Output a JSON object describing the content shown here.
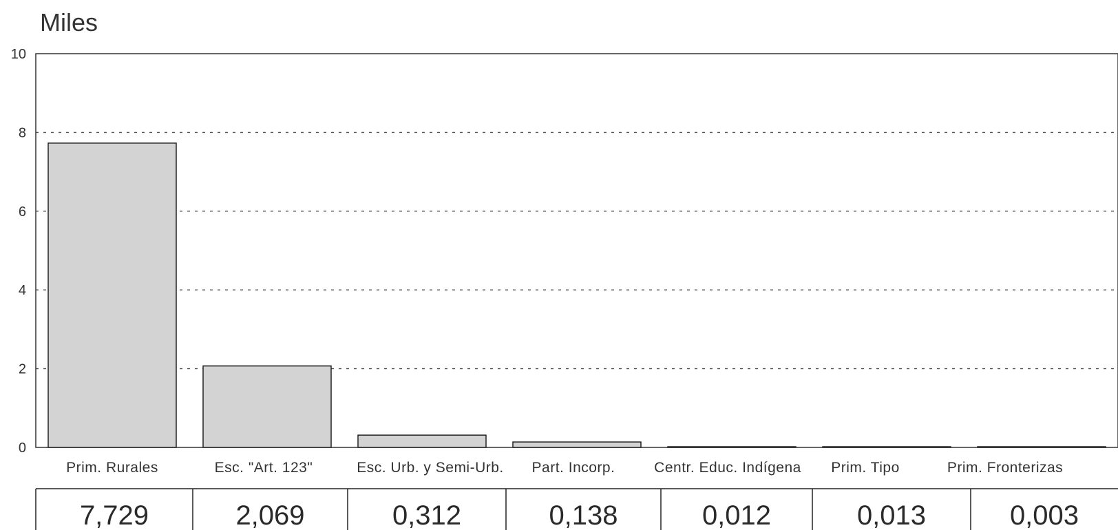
{
  "chart_data": {
    "type": "bar",
    "title": "",
    "unit_label": "Miles",
    "xlabel": "",
    "ylabel": "",
    "ylim": [
      0,
      10
    ],
    "yticks": [
      0,
      2,
      4,
      6,
      8,
      10
    ],
    "grid": true,
    "legend": "none",
    "categories": [
      "Prim. Rurales",
      "Esc. \"Art. 123\"",
      "Esc. Urb. y Semi-Urb.",
      "Part. Incorp.",
      "Centr. Educ. Indígena",
      "Prim. Tipo",
      "Prim. Fronterizas"
    ],
    "values": [
      7.729,
      2.069,
      0.312,
      0.138,
      0.012,
      0.013,
      0.003
    ],
    "table_values": [
      "7,729",
      "2,069",
      "0,312",
      "0,138",
      "0,012",
      "0,013",
      "0,003"
    ],
    "bar_color": "#d3d3d3",
    "bar_edge_color": "#222222"
  }
}
